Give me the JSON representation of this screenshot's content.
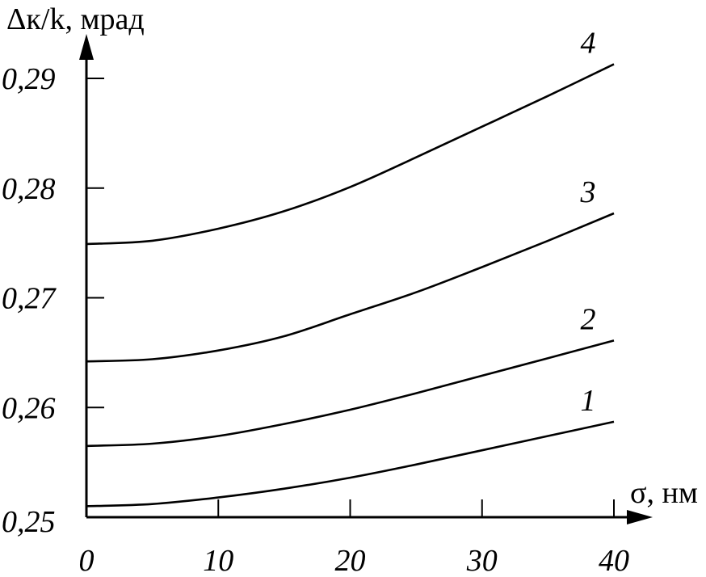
{
  "chart_data": {
    "type": "line",
    "ylabel": "Δк/k, мрад",
    "xlabel": "σ, нм",
    "xlim": [
      0,
      40
    ],
    "ylim": [
      0.25,
      0.29
    ],
    "x_ticks": [
      0,
      10,
      20,
      30,
      40
    ],
    "y_ticks": [
      0.25,
      0.26,
      0.27,
      0.28,
      0.29
    ],
    "x_tick_labels": [
      "0",
      "10",
      "20",
      "30",
      "40"
    ],
    "y_tick_labels": [
      "0,25",
      "0,26",
      "0,27",
      "0,28",
      "0,29"
    ],
    "grid": false,
    "x": [
      0,
      5,
      10,
      15,
      20,
      25,
      30,
      35,
      40
    ],
    "series": [
      {
        "name": "1",
        "values": [
          0.251,
          0.2512,
          0.2518,
          0.2526,
          0.2536,
          0.2548,
          0.2561,
          0.2574,
          0.2587
        ]
      },
      {
        "name": "2",
        "values": [
          0.2565,
          0.2567,
          0.2574,
          0.2585,
          0.2598,
          0.2613,
          0.2629,
          0.2645,
          0.2661
        ]
      },
      {
        "name": "3",
        "values": [
          0.2642,
          0.2644,
          0.2652,
          0.2665,
          0.2685,
          0.2705,
          0.2728,
          0.2752,
          0.2777
        ]
      },
      {
        "name": "4",
        "values": [
          0.2749,
          0.2752,
          0.2763,
          0.2779,
          0.2801,
          0.2828,
          0.2856,
          0.2884,
          0.2913
        ]
      }
    ]
  }
}
